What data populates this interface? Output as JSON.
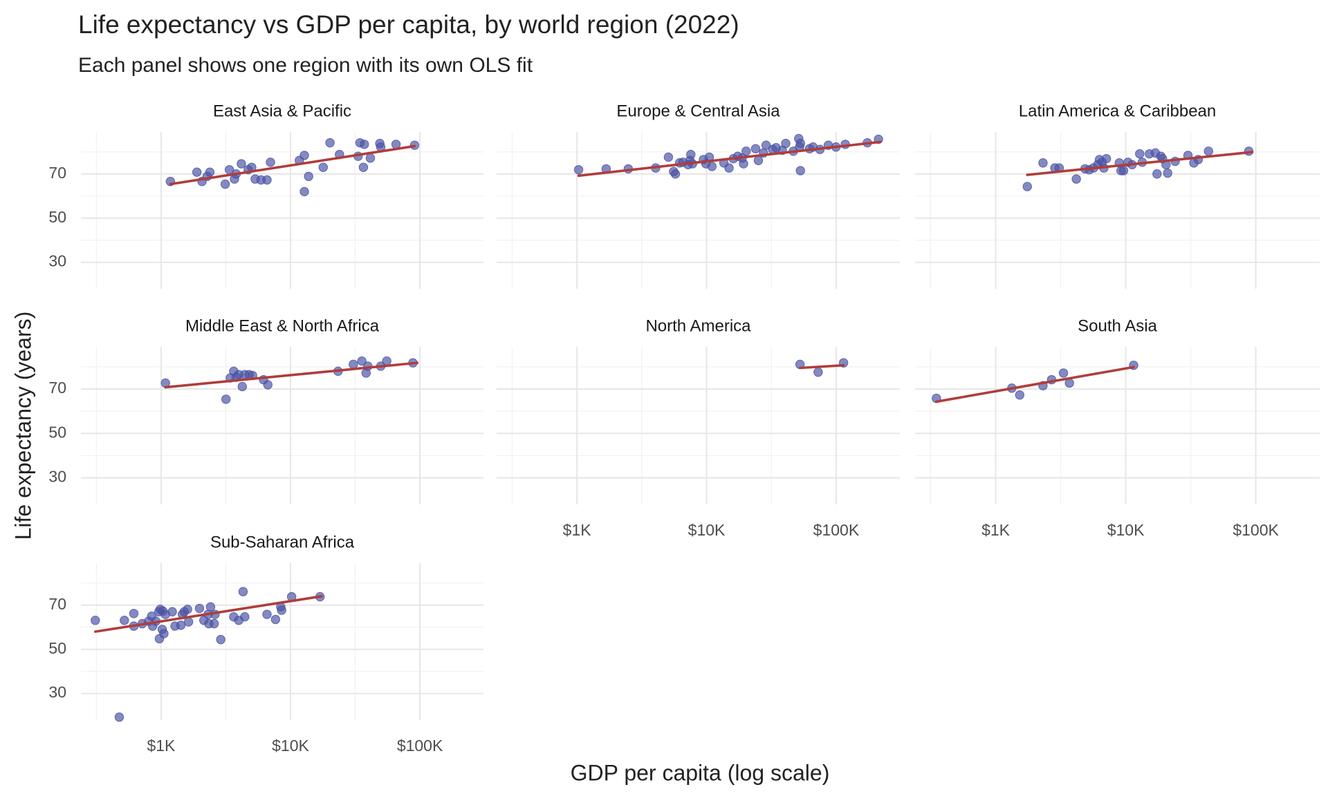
{
  "title": "Life expectancy vs GDP per capita, by world region (2022)",
  "subtitle": "Each panel shows one region with its own OLS fit",
  "x_label": "GDP per capita (log scale)",
  "y_label": "Life expectancy (years)",
  "chart_data": [
    {
      "type": "scatter",
      "title": "East Asia & Pacific",
      "color": "#4a52a3",
      "x": [
        1180,
        1890,
        2070,
        2270,
        2380,
        3130,
        3370,
        3690,
        3800,
        4170,
        4710,
        5010,
        5330,
        5920,
        6580,
        7000,
        11700,
        12800,
        12800,
        13800,
        17900,
        20200,
        23900,
        33300,
        34400,
        36600,
        37200,
        41400,
        49000,
        49800,
        65400,
        91000
      ],
      "y": [
        66.6,
        70.8,
        66.6,
        68.9,
        70.8,
        65.4,
        71.9,
        67.7,
        70,
        74.6,
        71.9,
        73,
        67.7,
        67.3,
        67.3,
        75.3,
        76.1,
        78.4,
        62,
        68.9,
        73,
        84.1,
        78.8,
        78,
        84.1,
        73,
        83.4,
        77.2,
        83.8,
        82.2,
        83.4,
        83
      ],
      "fit": {
        "x": [
          1180,
          91000
        ],
        "y": [
          65.4,
          82.6
        ],
        "color": "#b03d3b"
      },
      "x_log": true,
      "xlim": [
        240,
        310000
      ],
      "ylim": [
        18,
        89
      ],
      "xticks": [
        {
          "value": 1000,
          "label": "$1K"
        },
        {
          "value": 10000,
          "label": "$10K"
        },
        {
          "value": 100000,
          "label": "$100K"
        }
      ],
      "minor_xticks": [
        316,
        3162,
        31623
      ],
      "yticks": [
        30,
        50,
        70
      ],
      "minor_yticks": [
        40,
        60,
        80
      ],
      "grid": true
    },
    {
      "type": "scatter",
      "title": "Europe & Central Asia",
      "color": "#4a52a3",
      "x": [
        1030,
        1680,
        2490,
        4050,
        5080,
        5570,
        5750,
        6200,
        6580,
        7200,
        7440,
        7560,
        7790,
        9460,
        9890,
        10500,
        11000,
        13600,
        14900,
        16100,
        17400,
        18800,
        20200,
        19300,
        23900,
        25100,
        27500,
        28800,
        32400,
        34400,
        38400,
        40800,
        46700,
        51400,
        52200,
        53000,
        53000,
        62300,
        66300,
        74900,
        87000,
        99600,
        117600,
        174000,
        212000
      ],
      "y": [
        71.9,
        72.3,
        72.3,
        72.7,
        77.6,
        71.1,
        70,
        75,
        75.3,
        74.2,
        76.1,
        78.8,
        74.6,
        76.5,
        74.6,
        77.6,
        73.4,
        75,
        72.7,
        76.9,
        78,
        77.2,
        80.3,
        74.6,
        81.4,
        76.1,
        79.5,
        83,
        81.1,
        81.9,
        80.7,
        83.8,
        80.3,
        86,
        82.2,
        83.8,
        71.5,
        81.4,
        82.2,
        81.1,
        83,
        82.2,
        83.4,
        84.1,
        85.7
      ],
      "fit": {
        "x": [
          1030,
          219000
        ],
        "y": [
          69.2,
          84.5
        ],
        "color": "#b03d3b"
      },
      "x_log": true,
      "xlim": [
        240,
        310000
      ],
      "ylim": [
        18,
        89
      ],
      "xticks": [
        {
          "value": 1000,
          "label": "$1K"
        },
        {
          "value": 10000,
          "label": "$10K"
        },
        {
          "value": 100000,
          "label": "$100K"
        }
      ],
      "minor_xticks": [
        316,
        3162,
        31623
      ],
      "yticks": [
        30,
        50,
        70
      ],
      "minor_yticks": [
        40,
        60,
        80
      ],
      "grid": true
    },
    {
      "type": "scatter",
      "title": "Latin America & Caribbean",
      "color": "#4a52a3",
      "x": [
        1750,
        2310,
        2850,
        3080,
        4170,
        4860,
        5240,
        5650,
        6090,
        6280,
        6580,
        6790,
        7100,
        8920,
        9200,
        9630,
        10400,
        11200,
        12800,
        13400,
        15200,
        16900,
        17400,
        18600,
        19200,
        20400,
        21000,
        24000,
        30100,
        33400,
        36100,
        43300,
        88300
      ],
      "y": [
        64.3,
        75,
        72.7,
        72.7,
        67.7,
        72.3,
        71.9,
        72.7,
        74.2,
        76.5,
        75.3,
        72.7,
        76.9,
        75,
        71.5,
        71.5,
        75.3,
        74.2,
        79.1,
        75.3,
        79.1,
        79.5,
        70,
        78,
        76.9,
        74.2,
        70.4,
        75.7,
        78.4,
        75,
        76.5,
        80.3,
        80.3
      ],
      "fit": {
        "x": [
          1750,
          94000
        ],
        "y": [
          69.6,
          79.9
        ],
        "color": "#b03d3b"
      },
      "x_log": true,
      "xlim": [
        240,
        310000
      ],
      "ylim": [
        18,
        89
      ],
      "xticks": [
        {
          "value": 1000,
          "label": "$1K"
        },
        {
          "value": 10000,
          "label": "$10K"
        },
        {
          "value": 100000,
          "label": "$100K"
        }
      ],
      "minor_xticks": [
        316,
        3162,
        31623
      ],
      "yticks": [
        30,
        50,
        70
      ],
      "minor_yticks": [
        40,
        60,
        80
      ],
      "grid": true
    },
    {
      "type": "scatter",
      "title": "Middle East & North Africa",
      "color": "#4a52a3",
      "x": [
        1080,
        3420,
        3640,
        3800,
        3980,
        4240,
        4430,
        4780,
        5090,
        3170,
        6190,
        6680,
        23300,
        30600,
        35600,
        38400,
        39600,
        49800,
        55400,
        88300
      ],
      "y": [
        72.7,
        75,
        78,
        75.3,
        76.5,
        71.1,
        76.5,
        76.5,
        76.1,
        65.4,
        74.2,
        71.9,
        78,
        81.1,
        82.6,
        77.2,
        80.3,
        80.3,
        82.6,
        81.8
      ],
      "fit": {
        "x": [
          1080,
          95500
        ],
        "y": [
          70.8,
          81.8
        ],
        "color": "#b03d3b"
      },
      "x_log": true,
      "xlim": [
        240,
        310000
      ],
      "ylim": [
        18,
        89
      ],
      "xticks": [
        {
          "value": 1000,
          "label": "$1K"
        },
        {
          "value": 10000,
          "label": "$10K"
        },
        {
          "value": 100000,
          "label": "$100K"
        }
      ],
      "minor_xticks": [
        316,
        3162,
        31623
      ],
      "yticks": [
        30,
        50,
        70
      ],
      "minor_yticks": [
        40,
        60,
        80
      ],
      "grid": true
    },
    {
      "type": "scatter",
      "title": "North America",
      "color": "#4a52a3",
      "x": [
        52600,
        72600,
        114000
      ],
      "y": [
        81.1,
        77.6,
        81.8
      ],
      "fit": {
        "x": [
          52600,
          114000
        ],
        "y": [
          79.5,
          80.7
        ],
        "color": "#b03d3b"
      },
      "x_log": true,
      "xlim": [
        240,
        310000
      ],
      "ylim": [
        18,
        89
      ],
      "xticks": [
        {
          "value": 1000,
          "label": "$1K"
        },
        {
          "value": 10000,
          "label": "$10K"
        },
        {
          "value": 100000,
          "label": "$100K"
        }
      ],
      "minor_xticks": [
        316,
        3162,
        31623
      ],
      "yticks": [
        30,
        50,
        70
      ],
      "minor_yticks": [
        40,
        60,
        80
      ],
      "grid": true
    },
    {
      "type": "scatter",
      "title": "South Asia",
      "color": "#4a52a3",
      "x": [
        350,
        1330,
        1530,
        2310,
        2690,
        3320,
        3690,
        11500
      ],
      "y": [
        65.8,
        70.4,
        67.3,
        71.5,
        74.2,
        77.2,
        72.7,
        80.7
      ],
      "fit": {
        "x": [
          350,
          11500
        ],
        "y": [
          64.3,
          79.9
        ],
        "color": "#b03d3b"
      },
      "x_log": true,
      "xlim": [
        240,
        310000
      ],
      "ylim": [
        18,
        89
      ],
      "xticks": [
        {
          "value": 1000,
          "label": "$1K"
        },
        {
          "value": 10000,
          "label": "$10K"
        },
        {
          "value": 100000,
          "label": "$100K"
        }
      ],
      "minor_xticks": [
        316,
        3162,
        31623
      ],
      "yticks": [
        30,
        50,
        70
      ],
      "minor_yticks": [
        40,
        60,
        80
      ],
      "grid": true
    },
    {
      "type": "scatter",
      "title": "Sub-Saharan Africa",
      "color": "#4a52a3",
      "x": [
        310,
        475,
        520,
        615,
        615,
        715,
        800,
        845,
        860,
        910,
        960,
        970,
        985,
        1020,
        1030,
        1050,
        1080,
        1220,
        1280,
        1420,
        1460,
        1510,
        1600,
        1630,
        1980,
        2140,
        2310,
        2340,
        2410,
        2570,
        2610,
        2890,
        3640,
        3980,
        4300,
        4430,
        6580,
        7660,
        8410,
        8540,
        10200,
        16900
      ],
      "y": [
        63.1,
        19.3,
        63.1,
        66.2,
        60.5,
        61.6,
        62.7,
        65,
        60.5,
        62.7,
        67,
        54.8,
        68.1,
        59,
        67.3,
        57.1,
        65.8,
        67,
        60.5,
        60.9,
        65.8,
        67,
        68.1,
        62.4,
        68.5,
        63.1,
        65.8,
        61.6,
        69.2,
        61.6,
        65.8,
        54.4,
        64.7,
        63.1,
        76.1,
        64.7,
        65.8,
        63.5,
        69.2,
        67.7,
        73.8,
        73.8
      ],
      "fit": {
        "x": [
          310,
          17400
        ],
        "y": [
          58,
          74
        ],
        "color": "#b03d3b"
      },
      "x_log": true,
      "xlim": [
        240,
        310000
      ],
      "ylim": [
        18,
        89
      ],
      "xticks": [
        {
          "value": 1000,
          "label": "$1K"
        },
        {
          "value": 10000,
          "label": "$10K"
        },
        {
          "value": 100000,
          "label": "$100K"
        }
      ],
      "minor_xticks": [
        316,
        3162,
        31623
      ],
      "yticks": [
        30,
        50,
        70
      ],
      "minor_yticks": [
        40,
        60,
        80
      ],
      "grid": true
    }
  ]
}
